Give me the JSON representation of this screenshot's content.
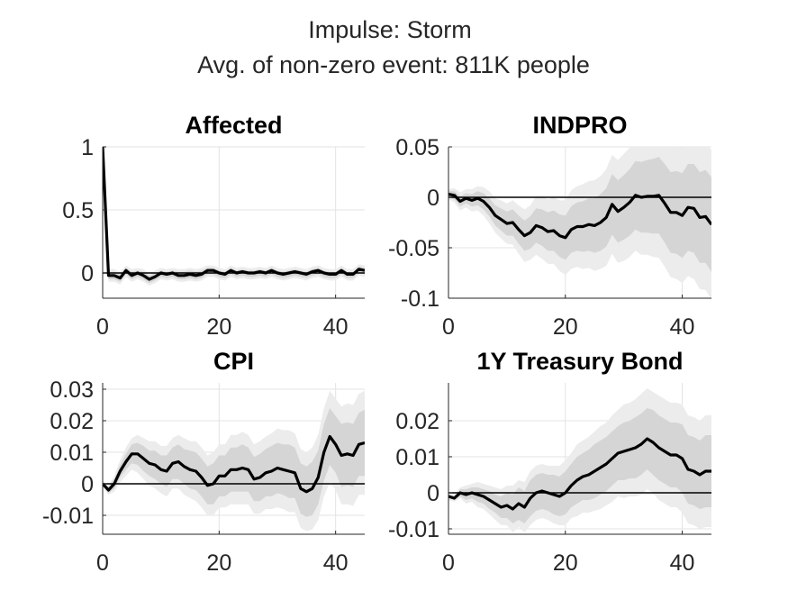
{
  "figure": {
    "title_line1": "Impulse: Storm",
    "title_line2": "Avg. of non-zero event: 811K people"
  },
  "colors": {
    "outer_band": "#ececec",
    "inner_band": "#d5d5d5",
    "response_line": "#000000",
    "zero_line": "#000000",
    "grid": "#e3e3e3",
    "axis": "#262626"
  },
  "chart_data": [
    {
      "type": "line",
      "title": "Affected",
      "grid": true,
      "xlim": [
        0,
        45
      ],
      "ylim": [
        -0.2,
        1
      ],
      "xticks": [
        0,
        20,
        40
      ],
      "xtick_labels": [
        "0",
        "20",
        "40"
      ],
      "yticks": [
        1,
        0.5,
        0
      ],
      "ytick_labels": [
        "1",
        "0.5",
        "0"
      ],
      "x": [
        0,
        1,
        2,
        3,
        4,
        5,
        6,
        7,
        8,
        9,
        10,
        11,
        12,
        13,
        14,
        15,
        16,
        17,
        18,
        19,
        20,
        21,
        22,
        23,
        24,
        25,
        26,
        27,
        28,
        29,
        30,
        31,
        32,
        33,
        34,
        35,
        36,
        37,
        38,
        39,
        40,
        41,
        42,
        43,
        44,
        45
      ],
      "values": [
        1,
        -0.02,
        -0.02,
        -0.04,
        0.02,
        -0.02,
        0,
        -0.02,
        -0.05,
        -0.03,
        0,
        -0.01,
        0,
        -0.02,
        -0.02,
        -0.01,
        -0.02,
        -0.01,
        0.02,
        0.02,
        0,
        -0.01,
        0.02,
        0,
        0.01,
        0,
        0,
        0.01,
        0,
        0.02,
        0,
        -0.01,
        0,
        0.01,
        0,
        -0.01,
        0.01,
        0.02,
        0,
        -0.01,
        -0.01,
        0.02,
        -0.01,
        -0.01,
        0.03,
        0.02
      ],
      "inner_upper": [
        1,
        0.01,
        0.01,
        -0.01,
        0.04,
        0.01,
        0.02,
        0.01,
        -0.02,
        0,
        0.02,
        0.01,
        0.02,
        0.01,
        0.01,
        0.02,
        0.01,
        0.02,
        0.04,
        0.04,
        0.02,
        0.01,
        0.04,
        0.02,
        0.03,
        0.02,
        0.02,
        0.03,
        0.02,
        0.04,
        0.02,
        0.01,
        0.02,
        0.03,
        0.02,
        0.01,
        0.03,
        0.04,
        0.02,
        0.01,
        0.01,
        0.04,
        0.01,
        0.01,
        0.05,
        0.04
      ],
      "inner_lower": [
        1,
        -0.05,
        -0.05,
        -0.07,
        -0.01,
        -0.05,
        -0.03,
        -0.05,
        -0.08,
        -0.06,
        -0.03,
        -0.04,
        -0.03,
        -0.05,
        -0.05,
        -0.04,
        -0.05,
        -0.04,
        -0.01,
        -0.01,
        -0.03,
        -0.04,
        -0.01,
        -0.03,
        -0.02,
        -0.03,
        -0.03,
        -0.02,
        -0.03,
        -0.01,
        -0.03,
        -0.04,
        -0.03,
        -0.02,
        -0.03,
        -0.04,
        -0.02,
        -0.01,
        -0.03,
        -0.04,
        -0.04,
        -0.01,
        -0.04,
        -0.04,
        0,
        -0.01
      ],
      "outer_upper": [
        1,
        0.03,
        0.03,
        0.01,
        0.06,
        0.03,
        0.04,
        0.03,
        0,
        0.02,
        0.04,
        0.03,
        0.04,
        0.03,
        0.03,
        0.04,
        0.03,
        0.04,
        0.06,
        0.06,
        0.04,
        0.03,
        0.06,
        0.04,
        0.05,
        0.04,
        0.04,
        0.05,
        0.04,
        0.06,
        0.04,
        0.03,
        0.04,
        0.05,
        0.04,
        0.03,
        0.05,
        0.06,
        0.04,
        0.03,
        0.03,
        0.06,
        0.03,
        0.03,
        0.07,
        0.06
      ],
      "outer_lower": [
        1,
        -0.07,
        -0.07,
        -0.09,
        -0.03,
        -0.07,
        -0.05,
        -0.07,
        -0.1,
        -0.08,
        -0.05,
        -0.06,
        -0.05,
        -0.07,
        -0.07,
        -0.06,
        -0.07,
        -0.06,
        -0.03,
        -0.03,
        -0.05,
        -0.06,
        -0.03,
        -0.05,
        -0.04,
        -0.05,
        -0.05,
        -0.04,
        -0.05,
        -0.03,
        -0.05,
        -0.06,
        -0.05,
        -0.04,
        -0.05,
        -0.06,
        -0.04,
        -0.03,
        -0.05,
        -0.06,
        -0.06,
        -0.03,
        -0.06,
        -0.06,
        -0.02,
        -0.03
      ]
    },
    {
      "type": "line",
      "title": "INDPRO",
      "grid": true,
      "xlim": [
        0,
        45
      ],
      "ylim": [
        -0.1,
        0.05
      ],
      "xticks": [
        0,
        20,
        40
      ],
      "xtick_labels": [
        "0",
        "20",
        "40"
      ],
      "yticks": [
        0.05,
        0,
        -0.05,
        -0.1
      ],
      "ytick_labels": [
        "0.05",
        "0",
        "-0.05",
        "-0.1"
      ],
      "x": [
        0,
        1,
        2,
        3,
        4,
        5,
        6,
        7,
        8,
        9,
        10,
        11,
        12,
        13,
        14,
        15,
        16,
        17,
        18,
        19,
        20,
        21,
        22,
        23,
        24,
        25,
        26,
        27,
        28,
        29,
        30,
        31,
        32,
        33,
        34,
        35,
        36,
        37,
        38,
        39,
        40,
        41,
        42,
        43,
        44,
        45
      ],
      "values": [
        0.003,
        0.002,
        -0.004,
        -0.001,
        -0.003,
        -0.001,
        -0.004,
        -0.01,
        -0.018,
        -0.022,
        -0.026,
        -0.025,
        -0.032,
        -0.038,
        -0.035,
        -0.028,
        -0.03,
        -0.034,
        -0.033,
        -0.038,
        -0.04,
        -0.032,
        -0.029,
        -0.029,
        -0.027,
        -0.028,
        -0.025,
        -0.02,
        -0.007,
        -0.014,
        -0.01,
        -0.005,
        0.002,
        0,
        0.001,
        0.001,
        0.002,
        -0.006,
        -0.015,
        -0.015,
        -0.018,
        -0.01,
        -0.011,
        -0.02,
        -0.019,
        -0.027
      ],
      "inner_upper": [
        0.006,
        0.006,
        0.001,
        0.004,
        0.003,
        0.006,
        0.004,
        -0.001,
        -0.008,
        -0.011,
        -0.014,
        -0.012,
        -0.018,
        -0.023,
        -0.019,
        -0.011,
        -0.012,
        -0.015,
        -0.013,
        -0.017,
        -0.018,
        -0.009,
        -0.005,
        -0.004,
        -0.001,
        -0.001,
        0.003,
        0.009,
        0.023,
        0.017,
        0.022,
        0.028,
        0.036,
        0.035,
        0.037,
        0.038,
        0.04,
        0.033,
        0.025,
        0.026,
        0.024,
        0.033,
        0.033,
        0.025,
        0.027,
        0.02
      ],
      "inner_lower": [
        0,
        -0.002,
        -0.009,
        -0.006,
        -0.009,
        -0.008,
        -0.012,
        -0.019,
        -0.028,
        -0.033,
        -0.038,
        -0.038,
        -0.046,
        -0.053,
        -0.051,
        -0.045,
        -0.048,
        -0.053,
        -0.053,
        -0.059,
        -0.062,
        -0.055,
        -0.053,
        -0.054,
        -0.053,
        -0.055,
        -0.053,
        -0.049,
        -0.037,
        -0.045,
        -0.042,
        -0.038,
        -0.032,
        -0.035,
        -0.035,
        -0.036,
        -0.036,
        -0.045,
        -0.055,
        -0.056,
        -0.06,
        -0.053,
        -0.055,
        -0.065,
        -0.065,
        -0.074
      ],
      "outer_upper": [
        0.008,
        0.009,
        0.005,
        0.008,
        0.008,
        0.011,
        0.01,
        0.006,
        -0.001,
        -0.003,
        -0.006,
        -0.003,
        -0.008,
        -0.012,
        -0.008,
        0.001,
        0.001,
        -0.002,
        0,
        -0.003,
        -0.003,
        0.007,
        0.011,
        0.013,
        0.016,
        0.017,
        0.021,
        0.028,
        0.042,
        0.037,
        0.043,
        0.049,
        0.057,
        0.057,
        0.059,
        0.061,
        0.064,
        0.057,
        0.049,
        0.051,
        0.049,
        0.058,
        0.059,
        0.051,
        0.054,
        0.047
      ],
      "outer_lower": [
        -0.002,
        -0.005,
        -0.013,
        -0.01,
        -0.014,
        -0.013,
        -0.018,
        -0.026,
        -0.035,
        -0.041,
        -0.046,
        -0.047,
        -0.056,
        -0.064,
        -0.062,
        -0.057,
        -0.061,
        -0.066,
        -0.066,
        -0.073,
        -0.077,
        -0.071,
        -0.069,
        -0.071,
        -0.07,
        -0.073,
        -0.071,
        -0.068,
        -0.056,
        -0.065,
        -0.063,
        -0.059,
        -0.053,
        -0.057,
        -0.057,
        -0.059,
        -0.06,
        -0.069,
        -0.079,
        -0.081,
        -0.085,
        -0.078,
        -0.081,
        -0.091,
        -0.092,
        -0.101
      ]
    },
    {
      "type": "line",
      "title": "CPI",
      "grid": true,
      "xlim": [
        0,
        45
      ],
      "ylim": [
        -0.016,
        0.032
      ],
      "xticks": [
        0,
        20,
        40
      ],
      "xtick_labels": [
        "0",
        "20",
        "40"
      ],
      "yticks": [
        0.03,
        0.02,
        0.01,
        0,
        -0.01
      ],
      "ytick_labels": [
        "0.03",
        "0.02",
        "0.01",
        "0",
        "-0.01"
      ],
      "x": [
        0,
        1,
        2,
        3,
        4,
        5,
        6,
        7,
        8,
        9,
        10,
        11,
        12,
        13,
        14,
        15,
        16,
        17,
        18,
        19,
        20,
        21,
        22,
        23,
        24,
        25,
        26,
        27,
        28,
        29,
        30,
        31,
        32,
        33,
        34,
        35,
        36,
        37,
        38,
        39,
        40,
        41,
        42,
        43,
        44,
        45
      ],
      "values": [
        0,
        -0.002,
        0,
        0.004,
        0.007,
        0.0095,
        0.0095,
        0.008,
        0.0065,
        0.006,
        0.0045,
        0.004,
        0.0065,
        0.007,
        0.0055,
        0.0045,
        0.004,
        0.002,
        -0.0005,
        0,
        0.0025,
        0.0025,
        0.0045,
        0.0045,
        0.005,
        0.0045,
        0.0015,
        0.002,
        0.0035,
        0.004,
        0.005,
        0.0045,
        0.004,
        0.0035,
        -0.0015,
        -0.0025,
        -0.0015,
        0.002,
        0.01,
        0.015,
        0.0125,
        0.009,
        0.0095,
        0.009,
        0.0125,
        0.013
      ],
      "inner_upper": [
        0.0005,
        -0.001,
        0.0015,
        0.006,
        0.0095,
        0.0125,
        0.013,
        0.012,
        0.0105,
        0.0105,
        0.009,
        0.009,
        0.0115,
        0.0125,
        0.011,
        0.0105,
        0.01,
        0.008,
        0.0055,
        0.0065,
        0.009,
        0.009,
        0.0115,
        0.0115,
        0.0125,
        0.0115,
        0.0085,
        0.0095,
        0.011,
        0.012,
        0.013,
        0.0125,
        0.0125,
        0.0115,
        0.0065,
        0.0055,
        0.007,
        0.0105,
        0.019,
        0.024,
        0.0215,
        0.019,
        0.0195,
        0.019,
        0.0225,
        0.0235
      ],
      "inner_lower": [
        -0.0005,
        -0.003,
        -0.0015,
        0.002,
        0.0045,
        0.0065,
        0.006,
        0.004,
        0.0025,
        0.0015,
        0,
        -0.001,
        0.0015,
        0.0015,
        0,
        -0.0015,
        -0.002,
        -0.004,
        -0.0065,
        -0.0065,
        -0.004,
        -0.004,
        -0.0025,
        -0.0025,
        -0.0025,
        -0.0025,
        -0.0055,
        -0.0055,
        -0.004,
        -0.004,
        -0.003,
        -0.0035,
        -0.0045,
        -0.0045,
        -0.0095,
        -0.0105,
        -0.01,
        -0.0065,
        0.001,
        0.006,
        0.0035,
        -0.001,
        -0.0005,
        -0.001,
        0.0025,
        0.0025
      ],
      "outer_upper": [
        0.001,
        -0.0005,
        0.0025,
        0.0075,
        0.0115,
        0.0145,
        0.0155,
        0.0145,
        0.0135,
        0.0135,
        0.012,
        0.012,
        0.0145,
        0.0155,
        0.0145,
        0.0135,
        0.0135,
        0.0115,
        0.009,
        0.01,
        0.0125,
        0.0125,
        0.0155,
        0.0155,
        0.0165,
        0.0155,
        0.0125,
        0.0135,
        0.015,
        0.016,
        0.0175,
        0.017,
        0.017,
        0.016,
        0.011,
        0.01,
        0.0115,
        0.0155,
        0.024,
        0.0295,
        0.027,
        0.0245,
        0.0255,
        0.025,
        0.0285,
        0.0295
      ],
      "outer_lower": [
        -0.001,
        -0.0035,
        -0.0025,
        0.0005,
        0.0025,
        0.0045,
        0.0035,
        0.0015,
        -0.0005,
        -0.0015,
        -0.003,
        -0.004,
        -0.0015,
        -0.0015,
        -0.0035,
        -0.0045,
        -0.0055,
        -0.0075,
        -0.01,
        -0.01,
        -0.0075,
        -0.0075,
        -0.0065,
        -0.0065,
        -0.0065,
        -0.0065,
        -0.0095,
        -0.0095,
        -0.008,
        -0.008,
        -0.0075,
        -0.008,
        -0.009,
        -0.009,
        -0.014,
        -0.015,
        -0.0145,
        -0.0115,
        -0.004,
        0.0005,
        -0.002,
        -0.0065,
        -0.0065,
        -0.007,
        -0.0035,
        -0.0035
      ]
    },
    {
      "type": "line",
      "title": "1Y Treasury Bond",
      "grid": true,
      "xlim": [
        0,
        45
      ],
      "ylim": [
        -0.0115,
        0.0305
      ],
      "xticks": [
        0,
        20,
        40
      ],
      "xtick_labels": [
        "0",
        "20",
        "40"
      ],
      "yticks": [
        0.02,
        0.01,
        0,
        -0.01
      ],
      "ytick_labels": [
        "0.02",
        "0.01",
        "0",
        "-0.01"
      ],
      "x": [
        0,
        1,
        2,
        3,
        4,
        5,
        6,
        7,
        8,
        9,
        10,
        11,
        12,
        13,
        14,
        15,
        16,
        17,
        18,
        19,
        20,
        21,
        22,
        23,
        24,
        25,
        26,
        27,
        28,
        29,
        30,
        31,
        32,
        33,
        34,
        35,
        36,
        37,
        38,
        39,
        40,
        41,
        42,
        43,
        44,
        45
      ],
      "values": [
        -0.001,
        -0.0015,
        0,
        -0.0005,
        0,
        -0.0005,
        -0.001,
        -0.002,
        -0.003,
        -0.004,
        -0.0035,
        -0.0045,
        -0.003,
        -0.004,
        -0.0015,
        0,
        0.0005,
        0,
        -0.0005,
        -0.001,
        0,
        0.002,
        0.0035,
        0.0045,
        0.005,
        0.006,
        0.007,
        0.008,
        0.0095,
        0.011,
        0.0115,
        0.012,
        0.0125,
        0.0135,
        0.015,
        0.014,
        0.0125,
        0.0115,
        0.0105,
        0.0105,
        0.0095,
        0.0065,
        0.006,
        0.005,
        0.006,
        0.006
      ],
      "inner_upper": [
        -0.0005,
        -0.001,
        0.001,
        0.001,
        0.0015,
        0.0015,
        0.001,
        0.0005,
        -0.0005,
        -0.001,
        0,
        -0.0005,
        0.0015,
        0.0005,
        0.0035,
        0.005,
        0.0055,
        0.005,
        0.005,
        0.0045,
        0.006,
        0.008,
        0.01,
        0.011,
        0.012,
        0.0135,
        0.0145,
        0.0155,
        0.017,
        0.0185,
        0.0195,
        0.02,
        0.021,
        0.022,
        0.0235,
        0.023,
        0.0215,
        0.0205,
        0.0195,
        0.0195,
        0.019,
        0.016,
        0.0155,
        0.0145,
        0.016,
        0.016
      ],
      "inner_lower": [
        -0.0015,
        -0.002,
        -0.001,
        -0.002,
        -0.0015,
        -0.0025,
        -0.003,
        -0.0045,
        -0.0055,
        -0.007,
        -0.007,
        -0.0085,
        -0.0075,
        -0.0085,
        -0.0065,
        -0.005,
        -0.0045,
        -0.005,
        -0.006,
        -0.0065,
        -0.006,
        -0.004,
        -0.003,
        -0.002,
        -0.002,
        -0.0015,
        -0.0005,
        0.0005,
        0.002,
        0.0035,
        0.0035,
        0.004,
        0.004,
        0.005,
        0.0065,
        0.005,
        0.0035,
        0.0025,
        0.0015,
        0.0015,
        0,
        -0.003,
        -0.0035,
        -0.0045,
        -0.004,
        -0.004
      ],
      "outer_upper": [
        0,
        -0.0005,
        0.0015,
        0.002,
        0.0025,
        0.003,
        0.0025,
        0.002,
        0.0015,
        0.001,
        0.002,
        0.002,
        0.0035,
        0.003,
        0.006,
        0.0075,
        0.008,
        0.0075,
        0.0075,
        0.0075,
        0.009,
        0.011,
        0.0135,
        0.0145,
        0.0155,
        0.017,
        0.0185,
        0.0195,
        0.0215,
        0.023,
        0.0245,
        0.025,
        0.026,
        0.0275,
        0.029,
        0.028,
        0.027,
        0.026,
        0.025,
        0.025,
        0.0245,
        0.0215,
        0.021,
        0.02,
        0.0215,
        0.0215
      ],
      "outer_lower": [
        -0.002,
        -0.0025,
        -0.0015,
        -0.003,
        -0.0025,
        -0.004,
        -0.0045,
        -0.006,
        -0.0075,
        -0.009,
        -0.009,
        -0.011,
        -0.0095,
        -0.011,
        -0.009,
        -0.0075,
        -0.007,
        -0.0075,
        -0.0085,
        -0.009,
        -0.009,
        -0.007,
        -0.0065,
        -0.0055,
        -0.0055,
        -0.005,
        -0.0045,
        -0.0035,
        -0.0025,
        -0.001,
        -0.0015,
        -0.001,
        -0.001,
        -0.0005,
        0.001,
        0,
        -0.002,
        -0.003,
        -0.004,
        -0.004,
        -0.0055,
        -0.0085,
        -0.009,
        -0.01,
        -0.0095,
        -0.0095
      ]
    }
  ]
}
